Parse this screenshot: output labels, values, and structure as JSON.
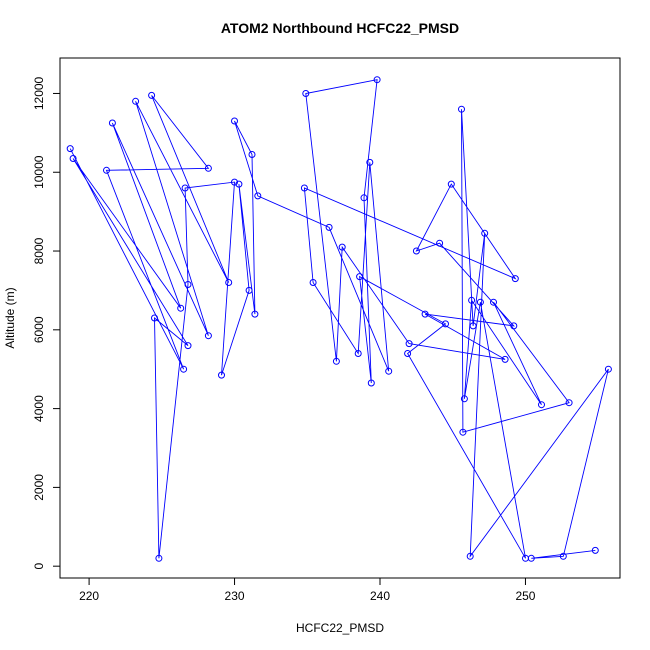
{
  "chart_data": {
    "type": "line",
    "title": "ATOM2 Northbound HCFC22_PMSD",
    "xlabel": "HCFC22_PMSD",
    "ylabel": "Altitude (m)",
    "xlim": [
      218,
      256.5
    ],
    "ylim": [
      -300,
      12900
    ],
    "xticks": [
      220,
      230,
      240,
      250
    ],
    "yticks": [
      0,
      2000,
      4000,
      6000,
      8000,
      10000,
      12000
    ],
    "grid": false,
    "color": "#0000ff",
    "series": [
      {
        "values": [
          {
            "x": 218.7,
            "y": 10600
          },
          {
            "x": 226.5,
            "y": 5000
          },
          {
            "x": 221.2,
            "y": 10050
          },
          {
            "x": 228.2,
            "y": 10100
          },
          {
            "x": 224.3,
            "y": 11950
          },
          {
            "x": 229.6,
            "y": 7200
          },
          {
            "x": 223.2,
            "y": 11800
          },
          {
            "x": 228.2,
            "y": 5850
          },
          {
            "x": 221.6,
            "y": 11250
          },
          {
            "x": 226.3,
            "y": 6550
          },
          {
            "x": 218.9,
            "y": 10350
          },
          {
            "x": 226.8,
            "y": 5600
          },
          {
            "x": 224.5,
            "y": 6300
          },
          {
            "x": 224.8,
            "y": 200
          },
          {
            "x": 226.8,
            "y": 7150
          },
          {
            "x": 226.6,
            "y": 9600
          },
          {
            "x": 230.0,
            "y": 9750
          },
          {
            "x": 229.1,
            "y": 4850
          },
          {
            "x": 231.0,
            "y": 7000
          },
          {
            "x": 230.3,
            "y": 9700
          },
          {
            "x": 231.4,
            "y": 6400
          },
          {
            "x": 231.2,
            "y": 10450
          },
          {
            "x": 230.0,
            "y": 11300
          },
          {
            "x": 231.6,
            "y": 9400
          },
          {
            "x": 236.5,
            "y": 8600
          },
          {
            "x": 240.6,
            "y": 4950
          },
          {
            "x": 239.3,
            "y": 10250
          },
          {
            "x": 238.5,
            "y": 5400
          },
          {
            "x": 235.4,
            "y": 7200
          },
          {
            "x": 234.8,
            "y": 9600
          },
          {
            "x": 249.3,
            "y": 7300
          },
          {
            "x": 244.9,
            "y": 9700
          },
          {
            "x": 242.5,
            "y": 8000
          },
          {
            "x": 244.1,
            "y": 8200
          },
          {
            "x": 249.2,
            "y": 6100
          },
          {
            "x": 243.1,
            "y": 6400
          },
          {
            "x": 248.6,
            "y": 5250
          },
          {
            "x": 242.0,
            "y": 5650
          },
          {
            "x": 237.4,
            "y": 8100
          },
          {
            "x": 237.0,
            "y": 5200
          },
          {
            "x": 234.9,
            "y": 12000
          },
          {
            "x": 239.8,
            "y": 12350
          },
          {
            "x": 238.9,
            "y": 9350
          },
          {
            "x": 239.4,
            "y": 4650
          },
          {
            "x": 238.6,
            "y": 7350
          },
          {
            "x": 244.5,
            "y": 6150
          },
          {
            "x": 241.9,
            "y": 5400
          },
          {
            "x": 250.0,
            "y": 200
          },
          {
            "x": 246.9,
            "y": 6700
          },
          {
            "x": 245.8,
            "y": 4250
          },
          {
            "x": 246.3,
            "y": 6750
          },
          {
            "x": 251.1,
            "y": 4100
          },
          {
            "x": 247.8,
            "y": 6700
          },
          {
            "x": 253.0,
            "y": 4150
          },
          {
            "x": 245.7,
            "y": 3400
          },
          {
            "x": 245.6,
            "y": 11600
          },
          {
            "x": 246.4,
            "y": 6100
          },
          {
            "x": 247.2,
            "y": 8450
          },
          {
            "x": 246.2,
            "y": 250
          },
          {
            "x": 255.7,
            "y": 5000
          },
          {
            "x": 252.6,
            "y": 250
          },
          {
            "x": 250.4,
            "y": 200
          },
          {
            "x": 254.8,
            "y": 400
          }
        ]
      }
    ]
  }
}
